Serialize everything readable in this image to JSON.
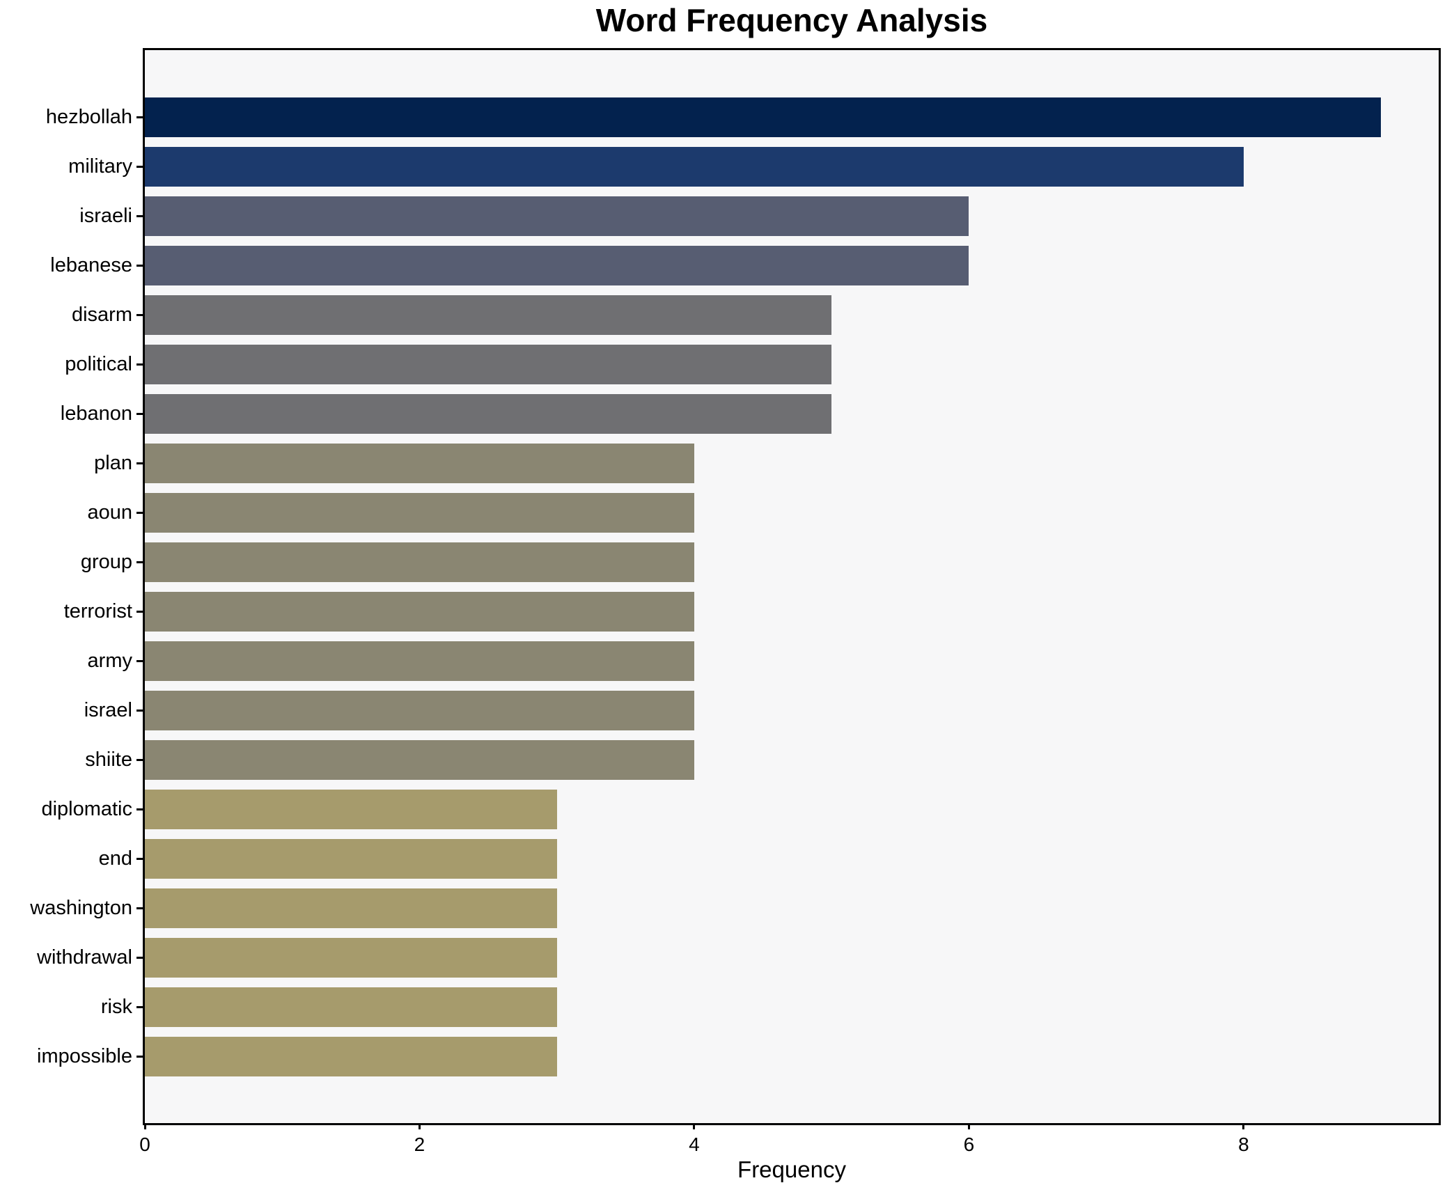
{
  "title": "Word Frequency Analysis",
  "xlabel": "Frequency",
  "chart_data": {
    "type": "bar",
    "orientation": "horizontal",
    "title": "Word Frequency Analysis",
    "xlabel": "Frequency",
    "ylabel": "",
    "categories": [
      "hezbollah",
      "military",
      "israeli",
      "lebanese",
      "disarm",
      "political",
      "lebanon",
      "plan",
      "aoun",
      "group",
      "terrorist",
      "army",
      "israel",
      "shiite",
      "diplomatic",
      "end",
      "washington",
      "withdrawal",
      "risk",
      "impossible"
    ],
    "values": [
      9,
      8,
      6,
      6,
      5,
      5,
      5,
      4,
      4,
      4,
      4,
      4,
      4,
      4,
      3,
      3,
      3,
      3,
      3,
      3
    ],
    "bar_colors": [
      "#03224e",
      "#1c3a6d",
      "#575d72",
      "#575d72",
      "#6f6f72",
      "#6f6f72",
      "#6f6f72",
      "#8a8672",
      "#8a8672",
      "#8a8672",
      "#8a8672",
      "#8a8672",
      "#8a8672",
      "#8a8672",
      "#a69b6c",
      "#a69b6c",
      "#a69b6c",
      "#a69b6c",
      "#a69b6c",
      "#a69b6c"
    ],
    "xlim": [
      0,
      9.42
    ],
    "x_ticks": [
      0,
      2,
      4,
      6,
      8
    ],
    "grid": false,
    "legend": false,
    "plot_background": "#f7f7f8",
    "figure_background": "#ffffff",
    "axis_color": "#000000",
    "text_color": "#000000"
  }
}
